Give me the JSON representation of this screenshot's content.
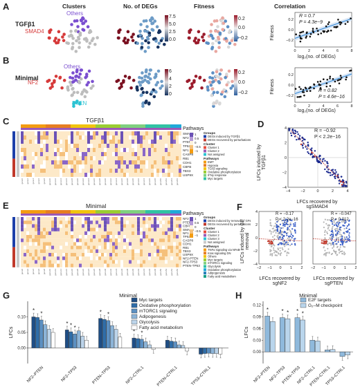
{
  "panels": {
    "A": "A",
    "B": "B",
    "C": "C",
    "D": "D",
    "E": "E",
    "F": "F",
    "G": "G",
    "H": "H"
  },
  "col_titles": {
    "clusters": "Clusters",
    "degs": "No. of DEGs",
    "fitness": "Fitness",
    "correlation": "Correlation"
  },
  "rowA": {
    "name": "TGFβ1",
    "labels": {
      "others": "Others",
      "smad4": "SMAD4"
    },
    "deg_ticks": [
      "7.5",
      "5.0",
      "2.5",
      "0.0"
    ],
    "fit_ticks": [
      "0.2",
      "0.0",
      "−0.2"
    ],
    "corr": {
      "r": "R = 0.7",
      "p": "P = 4.3e−9",
      "ylabel": "Fitness",
      "xlabel": "log₂(no. of DEGs)",
      "xticks": [
        "0",
        "2",
        "4",
        "6",
        "8"
      ],
      "yticks": [
        "0.2",
        "0.0",
        "−0.2"
      ]
    }
  },
  "rowB": {
    "name": "Minimal",
    "labels": {
      "others": "Others",
      "nf2": "NF2",
      "pten": "PTEN"
    },
    "deg_ticks": [
      "6",
      "4",
      "2",
      "0"
    ],
    "fit_ticks": [
      "0.2",
      "0.0",
      "−0.2"
    ],
    "corr": {
      "r": "R = 0.82",
      "p": "P = 4.6e−16",
      "ylabel": "Fitness",
      "xlabel": "log₂(no. of DEGs)",
      "xticks": [
        "0",
        "2",
        "4",
        "6",
        "8"
      ],
      "yticks": [
        "0.2",
        "0.0",
        "−0.2"
      ]
    }
  },
  "panelC": {
    "title": "TGFβ1",
    "side_label": "Pathways",
    "ylabels": [
      "Groups",
      "Clusters"
    ],
    "genes": [
      "SMAD4",
      "NF2",
      "PTEN",
      "TP53",
      "NF1",
      "CASP8",
      "RB1",
      "CDH1",
      "CBFB",
      "TBX3",
      "USP9X"
    ],
    "scale": [
      "1",
      "0.5",
      "0",
      "−0.5",
      "−1"
    ],
    "legend": {
      "groups_h": "Groups",
      "groups": [
        "DEGs induced by TGFβ1",
        "DEGs recovered by perturbations"
      ],
      "cluster_h": "Cluster",
      "clusters": [
        "Cluster 1",
        "Cluster 2",
        "Not assigned"
      ],
      "path_h": "Pathways",
      "pathways": [
        "EMT",
        "Hypoxia",
        "TGFβ signaling",
        "Oxidative phosphorylation",
        "IFNγ response",
        "Myc targets"
      ]
    }
  },
  "panelD": {
    "r": "R = −0.92",
    "p": "P < 2.2e−16",
    "ylabel": "LFCs induced by TGFβ1",
    "xlabel": "LFCs recovered by sgSMAD4",
    "xticks": [
      "−4",
      "−2",
      "0",
      "2",
      "4"
    ],
    "yticks": [
      "4",
      "2",
      "0",
      "−2",
      "−4"
    ]
  },
  "panelE": {
    "title": "Minimal",
    "side_label": "Pathways",
    "genes": [
      "NF2",
      "PTEN",
      "CBFB",
      "SMAD4",
      "NF1",
      "TP53",
      "CASP8",
      "CDH1",
      "RB1",
      "TBX3",
      "USP9X",
      "NF2-PTEN",
      "NF2-TP53",
      "PTEN-TP53"
    ],
    "scale": [
      "1",
      "0.5",
      "0",
      "−0.5",
      "−1"
    ],
    "legend": {
      "groups_h": "Groups",
      "groups": [
        "DEGs induced by removal of GFs",
        "DEGs recovered by perturbations"
      ],
      "cluster_h": "Cluster",
      "clusters": [
        "Cluster 1",
        "Cluster 2",
        "Cluster 3",
        "Not assigned"
      ],
      "path_h": "Pathways",
      "pathways": [
        "TNFα signaling via NFκB",
        "Kras signaling DN",
        "Others",
        "Myc targets",
        "mTORC1 signaling",
        "Glycolysis",
        "Oxidative phosphorylation",
        "Adipogenesis",
        "Fatty acid metabolism"
      ]
    }
  },
  "panelF": {
    "left": {
      "r": "R = −0.17",
      "p": "P < 2.2e−16",
      "xlabel": "LFCs recovered by sgNF2"
    },
    "right": {
      "r": "R = −0.047",
      "p": "P = 0.012",
      "xlabel": "LFCs recovered by sgPTEN"
    },
    "ylabel": "LFCs induced by GF removal",
    "xticks": [
      "−2",
      "−1",
      "0",
      "1",
      "2"
    ],
    "yticks": [
      "4",
      "2",
      "0",
      "−2",
      "−4"
    ]
  },
  "colors": {
    "red": "#d63a3a",
    "purple": "#7b4fd0",
    "cyan": "#2bc3d3",
    "darkblue": "#1c2a8f",
    "blue": "#3a5fc8",
    "grey": "#bdbdbd",
    "fit": "#2e86d6"
  },
  "chart_data": [
    {
      "type": "bar",
      "title": "Minimal",
      "ylabel": "LFCs",
      "ylim": [
        -0.05,
        0.15
      ],
      "categories": [
        "NF2–PTEN",
        "NF2–TP53",
        "PTEN–TP53",
        "NF2–CTRL1",
        "PTEN–CTRL1",
        "TP53–CTRL1"
      ],
      "series": [
        {
          "name": "Myc targets",
          "values": [
            0.1,
            0.058,
            0.095,
            0.032,
            0.025,
            -0.02
          ]
        },
        {
          "name": "Oxidative phosphorylation",
          "values": [
            0.098,
            0.052,
            0.092,
            0.03,
            0.022,
            -0.018
          ]
        },
        {
          "name": "mTORC1 signaling",
          "values": [
            0.09,
            0.045,
            0.088,
            0.028,
            0.02,
            -0.017
          ]
        },
        {
          "name": "Adipogenesis",
          "values": [
            0.075,
            0.055,
            0.072,
            0.02,
            0.01,
            -0.018
          ]
        },
        {
          "name": "Glycolysis",
          "values": [
            0.06,
            0.038,
            0.06,
            0.01,
            0.008,
            -0.018
          ]
        },
        {
          "name": "Fatty acid metabolism",
          "values": [
            0.05,
            0.025,
            0.035,
            -0.005,
            -0.01,
            -0.02
          ]
        }
      ],
      "stars": [
        [
          1,
          1,
          1,
          1,
          0,
          0
        ],
        [
          0,
          1,
          0,
          0,
          0,
          0
        ],
        [
          1,
          1,
          1,
          1,
          0,
          0
        ],
        [
          0,
          0,
          0,
          0,
          0,
          0
        ],
        [
          0,
          0,
          0,
          0,
          0,
          0
        ],
        [
          0,
          0,
          0,
          0,
          0,
          0
        ]
      ],
      "yticks": [
        "0.10",
        "0.05",
        "0.00"
      ],
      "colors": [
        "#1f4e85",
        "#2f6da8",
        "#5c90c2",
        "#8cb4d8",
        "#bcd4ea",
        "#ffffff"
      ]
    },
    {
      "type": "bar",
      "title": "Minimal",
      "ylabel": "LFCs",
      "ylim": [
        -0.03,
        0.13
      ],
      "categories": [
        "NF2–PTEN",
        "NF2–TP53",
        "PTEN–TP53",
        "NF2–CTRL1",
        "PTEN–CTRL1",
        "TP53–CTRL1"
      ],
      "series": [
        {
          "name": "E2F targets",
          "values": [
            0.092,
            0.088,
            0.088,
            0.03,
            0.005,
            -0.012
          ]
        },
        {
          "name": "G₂–M checkpoint",
          "values": [
            0.078,
            0.085,
            0.082,
            0.028,
            0.006,
            -0.008
          ]
        }
      ],
      "stars": [
        [
          1,
          1,
          1,
          0,
          0,
          0
        ],
        [
          0,
          1,
          1,
          0,
          0,
          0
        ]
      ],
      "yticks": [
        "0.12",
        "0.09",
        "0.06",
        "0.03",
        "0.00"
      ],
      "colors": [
        "#8fb9dc",
        "#b9d5ec"
      ]
    }
  ]
}
